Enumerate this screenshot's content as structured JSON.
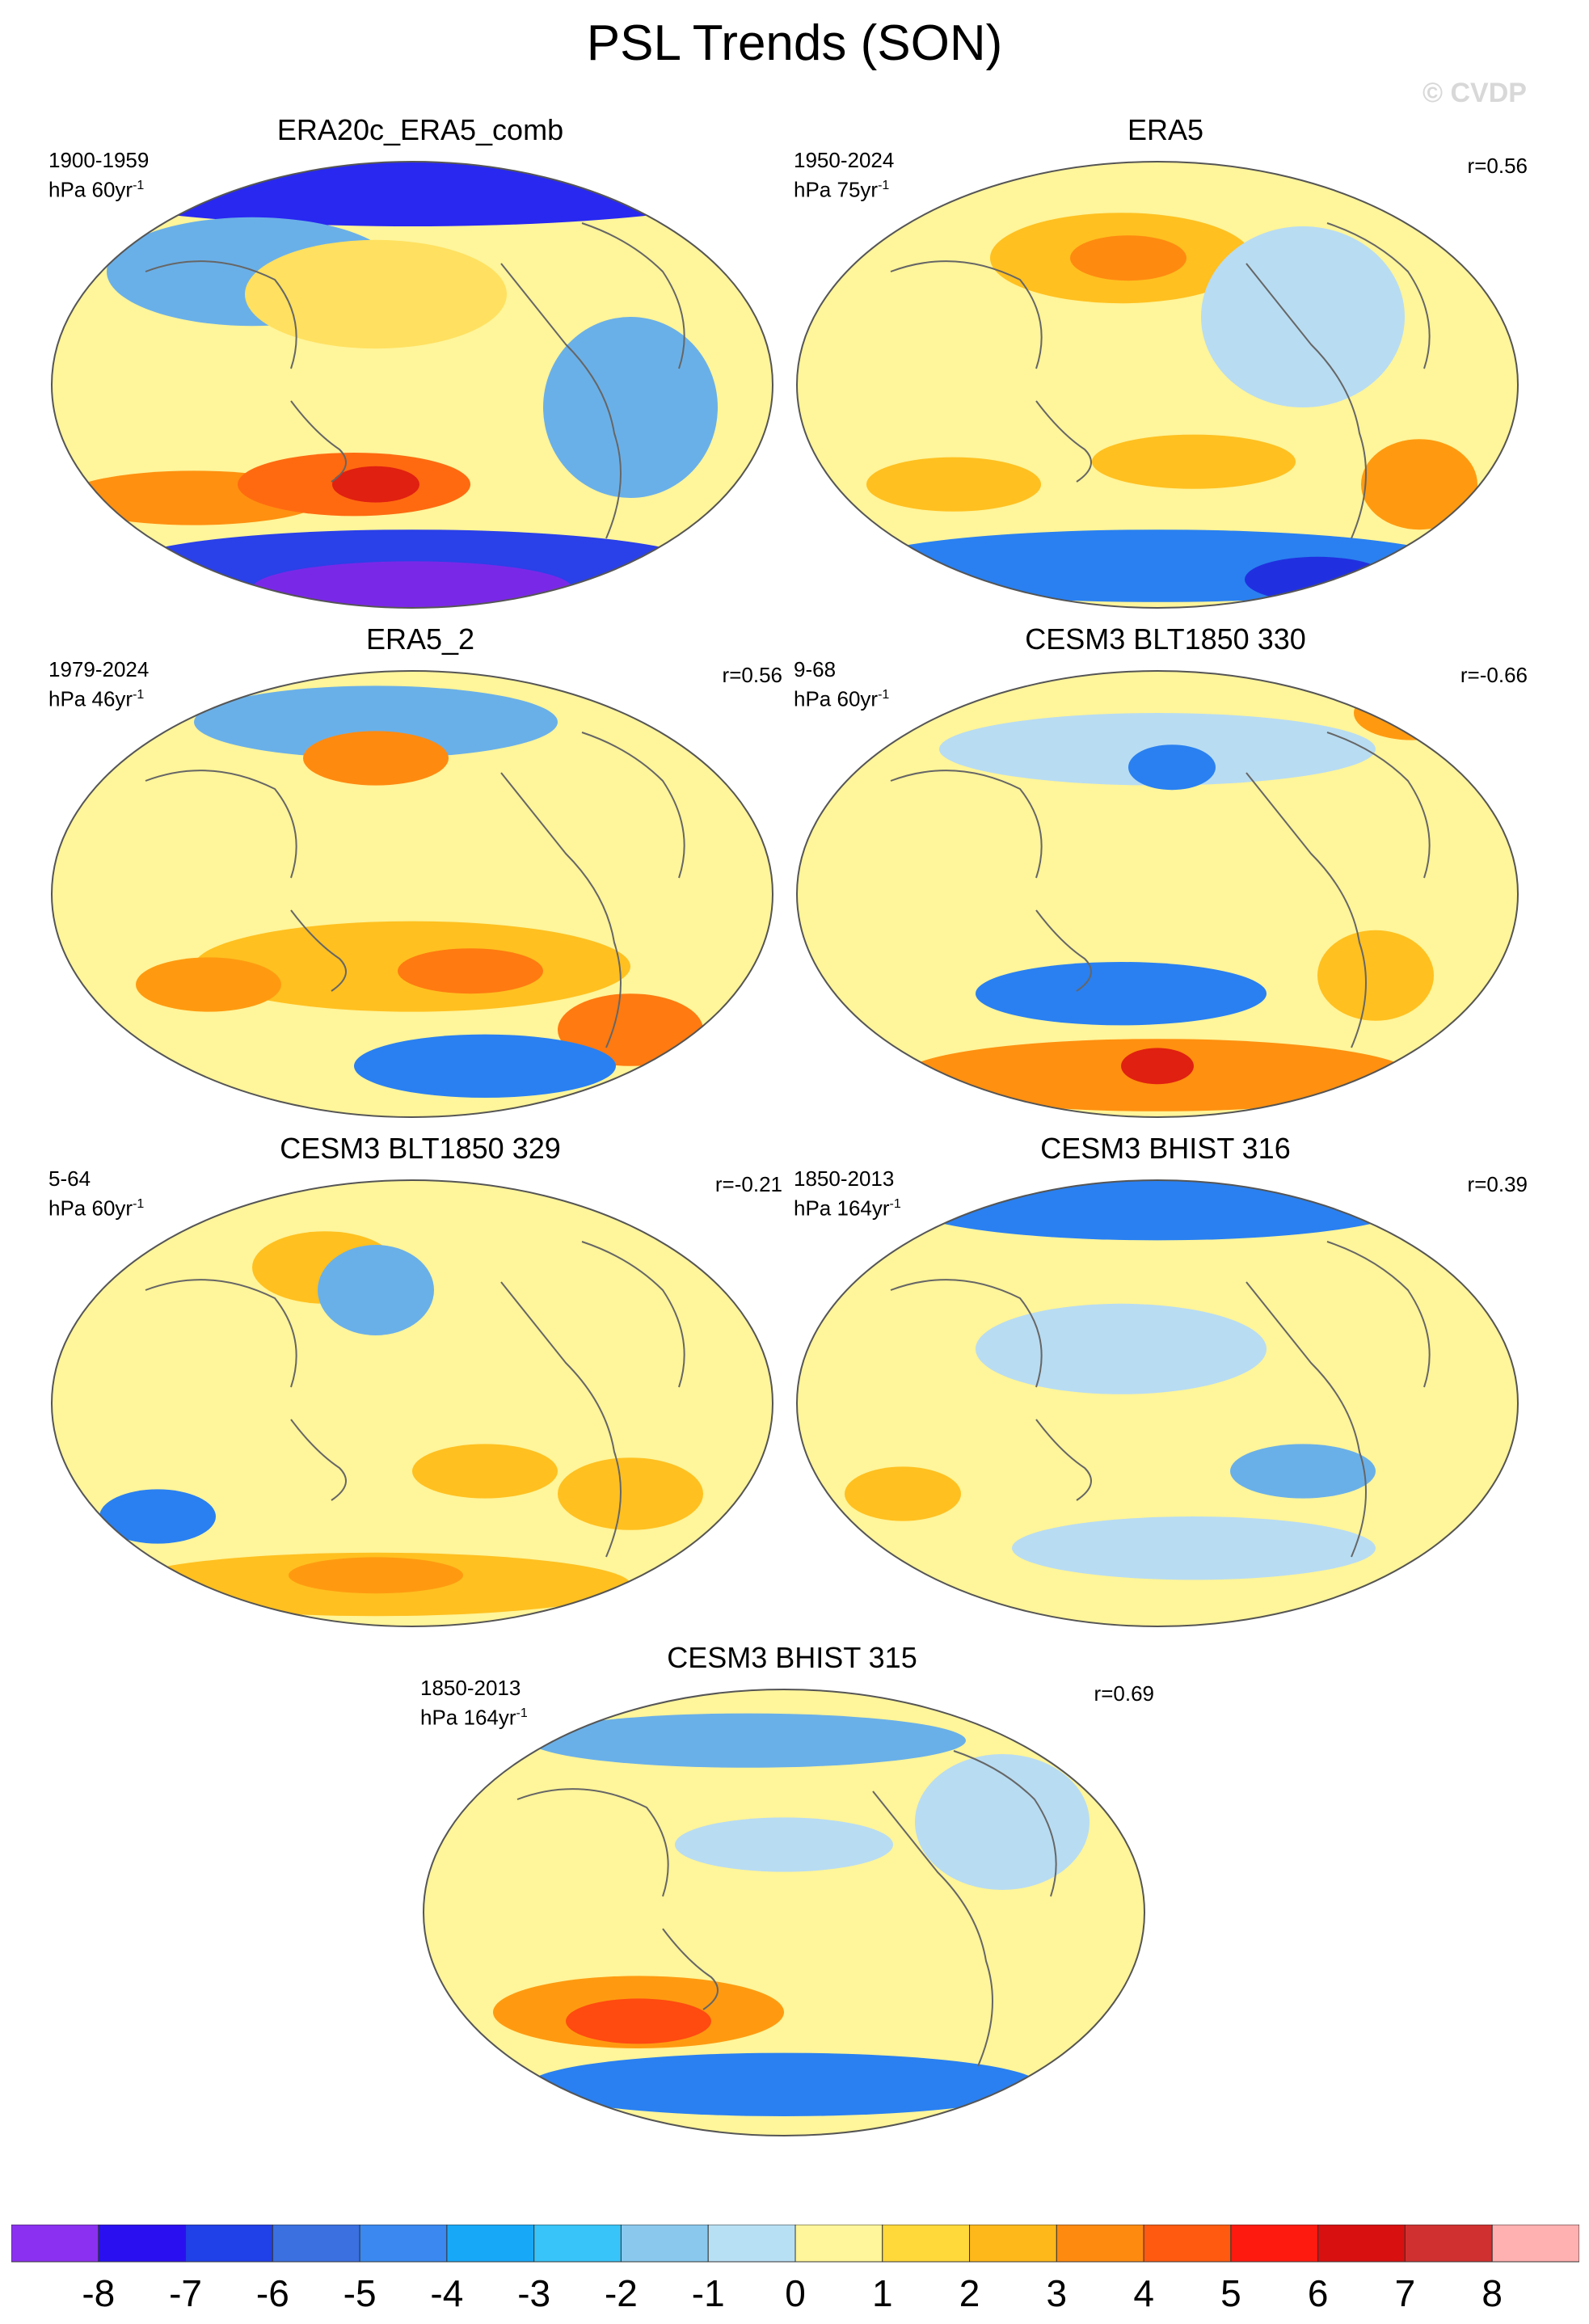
{
  "title": "PSL Trends (SON)",
  "watermark": "© CVDP",
  "panels": [
    {
      "title": "ERA20c_ERA5_comb",
      "period": "1900-1959",
      "units_base": "hPa 60yr",
      "units_exp": "-1",
      "corr": "",
      "blobs": [
        [
          0.5,
          0.05,
          0.5,
          0.1,
          "#2828f0"
        ],
        [
          0.28,
          0.25,
          0.2,
          0.12,
          "#6ab0e8"
        ],
        [
          0.45,
          0.3,
          0.18,
          0.12,
          "#ffe060"
        ],
        [
          0.2,
          0.75,
          0.18,
          0.06,
          "#ff9010"
        ],
        [
          0.42,
          0.72,
          0.16,
          0.07,
          "#ff6a10"
        ],
        [
          0.45,
          0.72,
          0.06,
          0.04,
          "#e02010"
        ],
        [
          0.5,
          0.9,
          0.4,
          0.08,
          "#2a40e8"
        ],
        [
          0.5,
          0.95,
          0.22,
          0.06,
          "#7a28e8"
        ],
        [
          0.8,
          0.55,
          0.12,
          0.2,
          "#6ab0e8"
        ]
      ]
    },
    {
      "title": "ERA5",
      "period": "1950-2024",
      "units_base": "hPa 75yr",
      "units_exp": "-1",
      "corr": "r=0.56",
      "blobs": [
        [
          0.45,
          0.22,
          0.18,
          0.1,
          "#ffc020"
        ],
        [
          0.46,
          0.22,
          0.08,
          0.05,
          "#ff8a10"
        ],
        [
          0.22,
          0.72,
          0.12,
          0.06,
          "#ffc020"
        ],
        [
          0.55,
          0.67,
          0.14,
          0.06,
          "#ffc020"
        ],
        [
          0.86,
          0.72,
          0.08,
          0.1,
          "#ff9a10"
        ],
        [
          0.5,
          0.9,
          0.42,
          0.08,
          "#2a80f0"
        ],
        [
          0.72,
          0.93,
          0.1,
          0.05,
          "#2030e0"
        ],
        [
          0.7,
          0.35,
          0.14,
          0.2,
          "#b8dcf2"
        ]
      ]
    },
    {
      "title": "ERA5_2",
      "period": "1979-2024",
      "units_base": "hPa 46yr",
      "units_exp": "-1",
      "corr": "r=0.56",
      "blobs": [
        [
          0.45,
          0.12,
          0.25,
          0.08,
          "#6ab0e8"
        ],
        [
          0.45,
          0.2,
          0.1,
          0.06,
          "#ff8a10"
        ],
        [
          0.5,
          0.66,
          0.3,
          0.1,
          "#ffc020"
        ],
        [
          0.58,
          0.67,
          0.1,
          0.05,
          "#ff7a10"
        ],
        [
          0.8,
          0.8,
          0.1,
          0.08,
          "#ff7a10"
        ],
        [
          0.6,
          0.88,
          0.18,
          0.07,
          "#2a80f0"
        ],
        [
          0.22,
          0.7,
          0.1,
          0.06,
          "#ff9a10"
        ]
      ]
    },
    {
      "title": "CESM3 BLT1850 330",
      "period": "9-68",
      "units_base": "hPa 60yr",
      "units_exp": "-1",
      "corr": "r=-0.66",
      "blobs": [
        [
          0.5,
          0.18,
          0.3,
          0.08,
          "#b8dcf2"
        ],
        [
          0.52,
          0.22,
          0.06,
          0.05,
          "#2a80f0"
        ],
        [
          0.85,
          0.1,
          0.08,
          0.06,
          "#ff9a10"
        ],
        [
          0.45,
          0.72,
          0.2,
          0.07,
          "#2a80f0"
        ],
        [
          0.5,
          0.9,
          0.35,
          0.08,
          "#ff9010"
        ],
        [
          0.5,
          0.88,
          0.05,
          0.04,
          "#e02010"
        ],
        [
          0.8,
          0.68,
          0.08,
          0.1,
          "#ffc020"
        ]
      ]
    },
    {
      "title": "CESM3 BLT1850 329",
      "period": "5-64",
      "units_base": "hPa 60yr",
      "units_exp": "-1",
      "corr": "r=-0.21",
      "blobs": [
        [
          0.38,
          0.2,
          0.1,
          0.08,
          "#ffc020"
        ],
        [
          0.45,
          0.25,
          0.08,
          0.1,
          "#6ab0e8"
        ],
        [
          0.6,
          0.65,
          0.1,
          0.06,
          "#ffc020"
        ],
        [
          0.45,
          0.9,
          0.35,
          0.07,
          "#ffc020"
        ],
        [
          0.45,
          0.88,
          0.12,
          0.04,
          "#ff9a10"
        ],
        [
          0.15,
          0.75,
          0.08,
          0.06,
          "#2a80f0"
        ],
        [
          0.8,
          0.7,
          0.1,
          0.08,
          "#ffc020"
        ]
      ]
    },
    {
      "title": "CESM3 BHIST 316",
      "period": "1850-2013",
      "units_base": "hPa 164yr",
      "units_exp": "-1",
      "corr": "r=0.39",
      "blobs": [
        [
          0.5,
          0.06,
          0.35,
          0.08,
          "#2a80f0"
        ],
        [
          0.45,
          0.38,
          0.2,
          0.1,
          "#b8dcf2"
        ],
        [
          0.7,
          0.65,
          0.1,
          0.06,
          "#6ab0e8"
        ],
        [
          0.55,
          0.82,
          0.25,
          0.07,
          "#b8dcf2"
        ],
        [
          0.15,
          0.7,
          0.08,
          0.06,
          "#ffc020"
        ]
      ]
    },
    {
      "title": "CESM3 BHIST 315",
      "period": "1850-2013",
      "units_base": "hPa 164yr",
      "units_exp": "-1",
      "corr": "r=0.69",
      "blobs": [
        [
          0.45,
          0.12,
          0.3,
          0.06,
          "#6ab0e8"
        ],
        [
          0.5,
          0.35,
          0.15,
          0.06,
          "#b8dcf2"
        ],
        [
          0.3,
          0.72,
          0.2,
          0.08,
          "#ff9a10"
        ],
        [
          0.3,
          0.74,
          0.1,
          0.05,
          "#ff4a10"
        ],
        [
          0.5,
          0.88,
          0.35,
          0.07,
          "#2a80f0"
        ],
        [
          0.8,
          0.3,
          0.12,
          0.15,
          "#b8dcf2"
        ]
      ]
    }
  ],
  "colorbar": {
    "colors": [
      "#8b30f0",
      "#2a10f0",
      "#2040e8",
      "#3a70e0",
      "#3a88f0",
      "#18a8f8",
      "#38c4f8",
      "#8ac8ee",
      "#b8e0f4",
      "#fff59a",
      "#ffd83a",
      "#ffb81a",
      "#ff8a10",
      "#ff5a10",
      "#ff1a10",
      "#d81010",
      "#d03030",
      "#ffb0b0"
    ],
    "labels": [
      "-8",
      "-7",
      "-6",
      "-5",
      "-4",
      "-3",
      "-2",
      "-1",
      "0",
      "1",
      "2",
      "3",
      "4",
      "5",
      "6",
      "7",
      "8"
    ]
  }
}
